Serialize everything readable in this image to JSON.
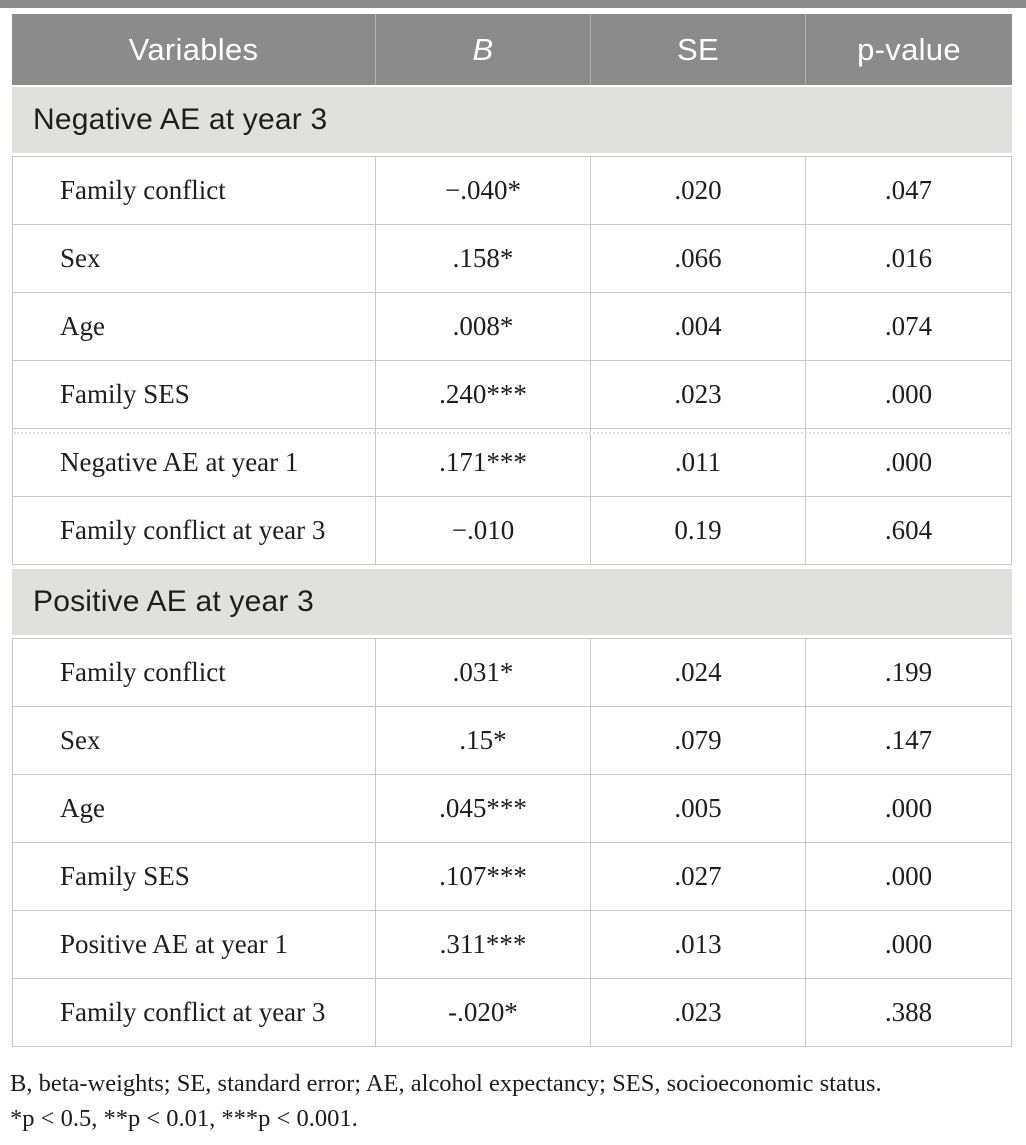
{
  "table": {
    "columns": [
      "Variables",
      "B",
      "SE",
      "p-value"
    ],
    "sections": [
      {
        "title": "Negative AE at year 3",
        "rows": [
          {
            "label": "Family conflict",
            "b": "−.040*",
            "se": ".020",
            "p": ".047"
          },
          {
            "label": "Sex",
            "b": ".158*",
            "se": ".066",
            "p": ".016"
          },
          {
            "label": "Age",
            "b": ".008*",
            "se": ".004",
            "p": ".074"
          },
          {
            "label": "Family SES",
            "b": ".240***",
            "se": ".023",
            "p": ".000"
          },
          {
            "label": "Negative AE at year 1",
            "b": ".171***",
            "se": ".011",
            "p": ".000"
          },
          {
            "label": "Family conflict at year 3",
            "b": "−.010",
            "se": "0.19",
            "p": ".604"
          }
        ]
      },
      {
        "title": "Positive AE at year 3",
        "rows": [
          {
            "label": "Family conflict",
            "b": ".031*",
            "se": ".024",
            "p": ".199"
          },
          {
            "label": "Sex",
            "b": ".15*",
            "se": ".079",
            "p": ".147"
          },
          {
            "label": "Age",
            "b": ".045***",
            "se": ".005",
            "p": ".000"
          },
          {
            "label": "Family SES",
            "b": ".107***",
            "se": ".027",
            "p": ".000"
          },
          {
            "label": "Positive AE at year 1",
            "b": ".311***",
            "se": ".013",
            "p": ".000"
          },
          {
            "label": "Family conflict at year 3",
            "b": "-.020*",
            "se": ".023",
            "p": ".388"
          }
        ]
      }
    ]
  },
  "footnotes": {
    "line1": "B, beta-weights; SE, standard error; AE, alcohol expectancy; SES, socioeconomic status.",
    "line2": "*p < 0.5, **p < 0.01, ***p < 0.001."
  },
  "colors": {
    "header_bg": "#8b8b8b",
    "section_bg": "#e0e0dd",
    "border": "#c8c8c6",
    "header_text": "#ffffff",
    "body_text": "#1d1d1d"
  }
}
